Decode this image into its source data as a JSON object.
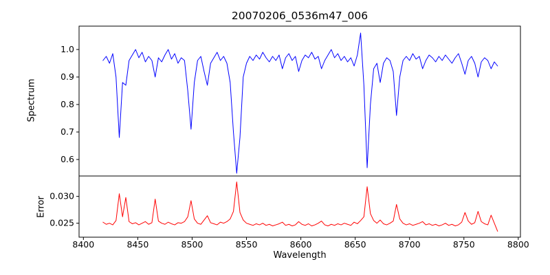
{
  "chart_data": {
    "type": "line",
    "title": "20070206_0536m47_006",
    "xlabel": "Wavelength",
    "x_start": 8418,
    "x_step": 3,
    "xlim": [
      8396,
      8802
    ],
    "xticks": [
      8400,
      8450,
      8500,
      8550,
      8600,
      8650,
      8700,
      8750,
      8800
    ],
    "panels": [
      {
        "name": "spectrum",
        "ylabel": "Spectrum",
        "color": "#0000ff",
        "ylim": [
          0.54,
          1.085
        ],
        "ytick_values": [
          0.6,
          0.7,
          0.8,
          0.9,
          1.0
        ],
        "ytick_labels": [
          "0.6",
          "0.7",
          "0.8",
          "0.9",
          "1.0"
        ],
        "y": [
          0.96,
          0.975,
          0.95,
          0.985,
          0.9,
          0.68,
          0.88,
          0.87,
          0.96,
          0.98,
          1.0,
          0.97,
          0.99,
          0.955,
          0.975,
          0.96,
          0.9,
          0.97,
          0.955,
          0.98,
          1.0,
          0.965,
          0.985,
          0.95,
          0.97,
          0.96,
          0.85,
          0.71,
          0.88,
          0.96,
          0.975,
          0.92,
          0.87,
          0.95,
          0.97,
          0.99,
          0.96,
          0.975,
          0.95,
          0.88,
          0.7,
          0.55,
          0.68,
          0.9,
          0.95,
          0.975,
          0.96,
          0.98,
          0.965,
          0.99,
          0.97,
          0.955,
          0.975,
          0.96,
          0.98,
          0.93,
          0.97,
          0.985,
          0.96,
          0.975,
          0.92,
          0.96,
          0.98,
          0.97,
          0.99,
          0.965,
          0.975,
          0.93,
          0.96,
          0.98,
          1.0,
          0.97,
          0.985,
          0.96,
          0.975,
          0.955,
          0.97,
          0.94,
          0.98,
          1.06,
          0.87,
          0.57,
          0.8,
          0.93,
          0.95,
          0.88,
          0.95,
          0.97,
          0.96,
          0.92,
          0.76,
          0.9,
          0.96,
          0.975,
          0.96,
          0.985,
          0.965,
          0.975,
          0.93,
          0.96,
          0.98,
          0.97,
          0.955,
          0.975,
          0.96,
          0.98,
          0.965,
          0.95,
          0.97,
          0.985,
          0.95,
          0.91,
          0.96,
          0.975,
          0.95,
          0.9,
          0.955,
          0.97,
          0.96,
          0.93,
          0.955,
          0.94
        ]
      },
      {
        "name": "error",
        "ylabel": "Error",
        "color": "#ff0000",
        "ylim": [
          0.0224,
          0.0338
        ],
        "ytick_values": [
          0.025,
          0.03
        ],
        "ytick_labels": [
          "0.025",
          "0.030"
        ],
        "y": [
          0.0252,
          0.0248,
          0.025,
          0.0247,
          0.0255,
          0.0305,
          0.0262,
          0.0298,
          0.0253,
          0.0249,
          0.0251,
          0.0247,
          0.025,
          0.0253,
          0.0248,
          0.0251,
          0.0295,
          0.0254,
          0.025,
          0.0248,
          0.0252,
          0.0249,
          0.0247,
          0.0251,
          0.025,
          0.0253,
          0.0262,
          0.0292,
          0.0258,
          0.025,
          0.0248,
          0.0256,
          0.0264,
          0.0251,
          0.0249,
          0.0247,
          0.0252,
          0.025,
          0.0253,
          0.0258,
          0.0272,
          0.0327,
          0.027,
          0.0256,
          0.025,
          0.0248,
          0.0246,
          0.0249,
          0.0247,
          0.025,
          0.0246,
          0.0248,
          0.0245,
          0.0247,
          0.0249,
          0.0252,
          0.0246,
          0.0248,
          0.0245,
          0.0247,
          0.0253,
          0.0248,
          0.0246,
          0.0249,
          0.0245,
          0.0247,
          0.025,
          0.0254,
          0.0247,
          0.0245,
          0.0248,
          0.0246,
          0.0249,
          0.0247,
          0.025,
          0.0248,
          0.0246,
          0.0252,
          0.0249,
          0.0255,
          0.0262,
          0.0318,
          0.0268,
          0.0255,
          0.025,
          0.0256,
          0.0249,
          0.0247,
          0.025,
          0.0254,
          0.0285,
          0.0258,
          0.025,
          0.0247,
          0.0249,
          0.0246,
          0.0248,
          0.025,
          0.0253,
          0.0247,
          0.0249,
          0.0246,
          0.0248,
          0.0245,
          0.0247,
          0.025,
          0.0246,
          0.0248,
          0.0245,
          0.0247,
          0.0252,
          0.027,
          0.0254,
          0.0248,
          0.0251,
          0.0272,
          0.0253,
          0.0249,
          0.0247,
          0.0265,
          0.025,
          0.0235
        ]
      }
    ]
  }
}
